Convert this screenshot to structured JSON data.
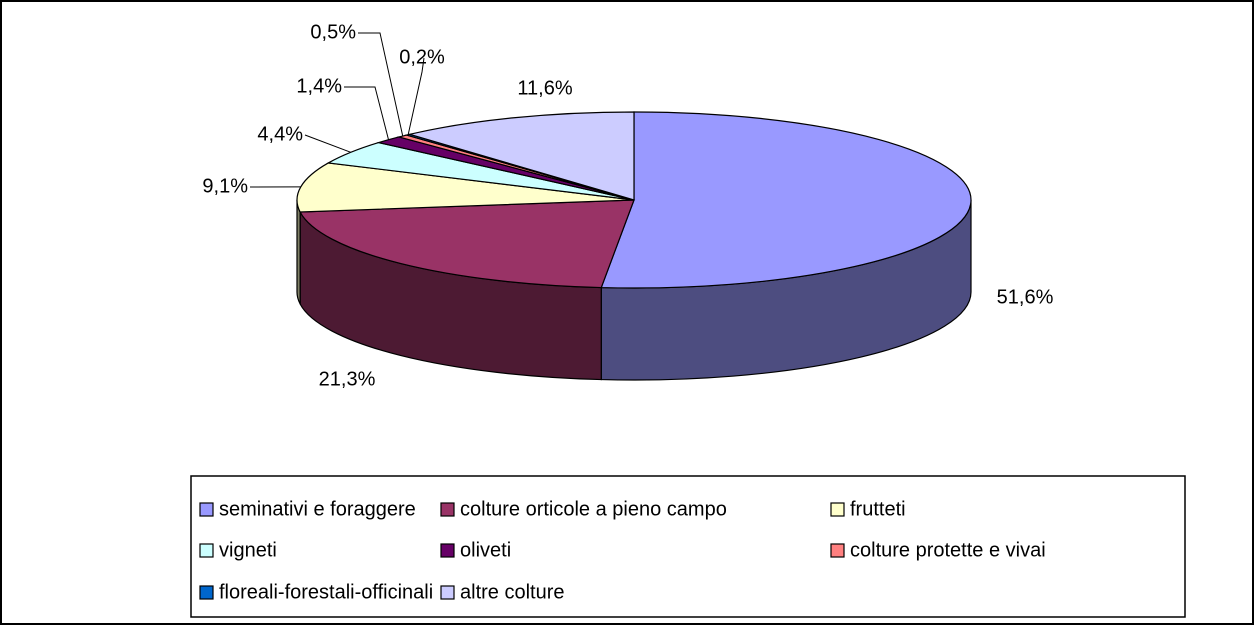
{
  "chart_data": {
    "type": "pie3d",
    "categories": [
      "seminativi e foraggere",
      "colture orticole a pieno campo",
      "frutteti",
      "vigneti",
      "oliveti",
      "colture protette e vivai",
      "floreali-forestali-officinali",
      "altre colture"
    ],
    "values": [
      51.6,
      21.3,
      9.1,
      4.4,
      1.4,
      0.5,
      0.2,
      11.6
    ],
    "value_labels": [
      "51,6%",
      "21,3%",
      "9,1%",
      "4,4%",
      "1,4%",
      "0,5%",
      "0,2%",
      "11,6%"
    ],
    "colors": [
      "#9999ff",
      "#993366",
      "#ffffcc",
      "#ccffff",
      "#660066",
      "#ff8080",
      "#0066cc",
      "#ccccff"
    ],
    "legend": "bottom"
  }
}
